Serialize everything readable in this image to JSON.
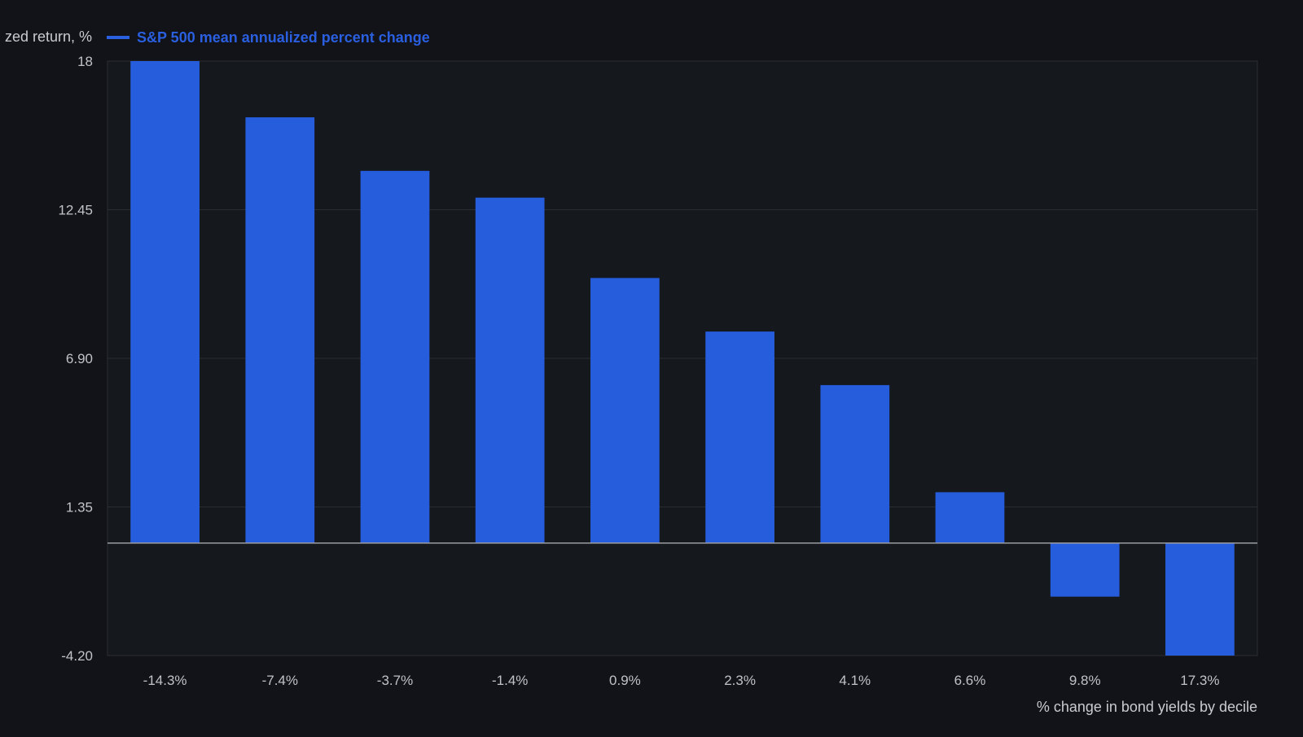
{
  "colors": {
    "background": "#111318",
    "plot_background": "#15181d",
    "bar": "#255ddc",
    "grid": "#2a2d33",
    "zero_line": "#9a9ca2",
    "text": "#c0c2c8",
    "legend_text": "#2a5fe0"
  },
  "chart_data": {
    "type": "bar",
    "title": "",
    "ylabel": "zed return, %",
    "xlabel": "% change in bond yields by decile",
    "legend_position": "top-left",
    "grid": true,
    "categories": [
      "-14.3%",
      "-7.4%",
      "-3.7%",
      "-1.4%",
      "0.9%",
      "2.3%",
      "4.1%",
      "6.6%",
      "9.8%",
      "17.3%"
    ],
    "series": [
      {
        "name": "S&P 500 mean annualized percent change",
        "values": [
          18.0,
          15.9,
          13.9,
          12.9,
          9.9,
          7.9,
          5.9,
          1.9,
          -2.0,
          -4.2
        ]
      }
    ],
    "ylim": [
      -4.2,
      18
    ],
    "yticks": [
      18,
      12.45,
      6.9,
      1.35,
      -4.2
    ],
    "ytick_labels": [
      "18",
      "12.45",
      "6.90",
      "1.35",
      "-4.20"
    ]
  }
}
